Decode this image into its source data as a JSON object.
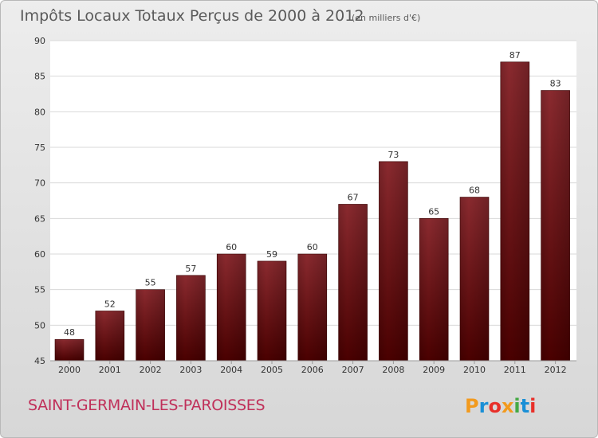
{
  "chart_data": {
    "type": "bar",
    "title": "Impôts Locaux Totaux Perçus de 2000 à 2012",
    "subtitle": "(en milliers d'€)",
    "categories": [
      "2000",
      "2001",
      "2002",
      "2003",
      "2004",
      "2005",
      "2006",
      "2007",
      "2008",
      "2009",
      "2010",
      "2011",
      "2012"
    ],
    "values": [
      48,
      52,
      55,
      57,
      60,
      59,
      60,
      67,
      73,
      65,
      68,
      87,
      83
    ],
    "ylim": [
      45,
      90
    ],
    "yticks": [
      45,
      50,
      55,
      60,
      65,
      70,
      75,
      80,
      85,
      90
    ],
    "grid": true,
    "bar_color": "#7a1f23",
    "bar_color_dark": "#4a0000"
  },
  "footer": {
    "commune": "SAINT-GERMAIN-LES-PAROISSES",
    "logo_text": "Proxiti",
    "logo_colors": [
      "#f29a1e",
      "#1a8fd6",
      "#e8302a",
      "#f29a1e",
      "#44a944",
      "#1a8fd6",
      "#e8302a"
    ]
  },
  "colors": {
    "commune": "#c0305a",
    "grid": "#d8d8d8"
  }
}
